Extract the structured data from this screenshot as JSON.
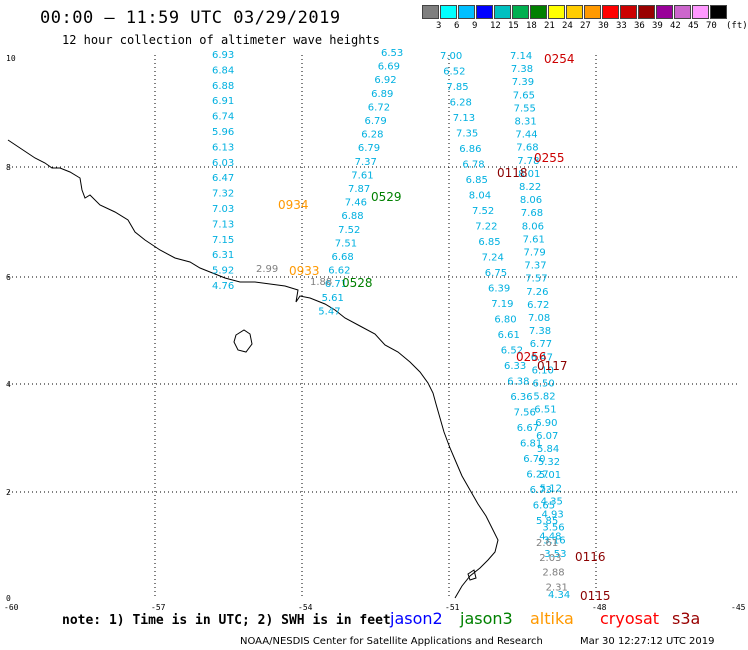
{
  "header": {
    "title": "00:00 – 11:59 UTC 03/29/2019",
    "subtitle": "12 hour collection of altimeter wave heights"
  },
  "legend": {
    "unit": "(ft)",
    "colors": [
      "#7f7f7f",
      "#00ffff",
      "#00bfff",
      "#0000ff",
      "#00c0c0",
      "#00b050",
      "#008000",
      "#ffff00",
      "#ffcc00",
      "#ff9900",
      "#ff0000",
      "#cc0000",
      "#990000",
      "#990099",
      "#cc66cc",
      "#ff99ff",
      "#000000"
    ],
    "labels": [
      "3",
      "6",
      "9",
      "12",
      "15",
      "18",
      "21",
      "24",
      "27",
      "30",
      "33",
      "36",
      "39",
      "42",
      "45",
      "70"
    ]
  },
  "axes": {
    "y_ticks": [
      "10",
      "8",
      "6",
      "4",
      "2",
      "0"
    ],
    "x_ticks": [
      "-60",
      "-57",
      "-54",
      "-51",
      "-48",
      "-45"
    ]
  },
  "tracks": [
    {
      "color": "#00b0e0",
      "start": [
        212,
        58
      ],
      "step": [
        0,
        15.4
      ],
      "values": [
        "6.93",
        "6.84",
        "6.88",
        "6.91",
        "6.74",
        "5.96",
        "6.13",
        "6.03",
        "6.47",
        "7.32",
        "7.03",
        "7.13",
        "7.15",
        "6.31",
        "5.92",
        "4.76"
      ]
    },
    {
      "color": "#7f7f7f",
      "start": [
        256,
        272
      ],
      "step": [
        0,
        0
      ],
      "values": [
        "2.99"
      ]
    },
    {
      "color": "#00b0e0",
      "start": [
        381,
        56
      ],
      "step": [
        -3.3,
        13.6
      ],
      "values": [
        "6.53",
        "6.69",
        "6.92",
        "6.89",
        "6.72",
        "6.79",
        "6.28",
        "6.79",
        "7.37",
        "7.61",
        "7.87",
        "7.46",
        "6.88",
        "7.52",
        "7.51",
        "6.68",
        "6.62",
        "6.71",
        "5.61",
        "5.47"
      ]
    },
    {
      "color": "#7f7f7f",
      "start": [
        310,
        285
      ],
      "step": [
        0,
        0
      ],
      "values": [
        "1.88"
      ]
    },
    {
      "color": "#00b0e0",
      "start": [
        440,
        59
      ],
      "step": [
        3.2,
        15.5
      ],
      "values": [
        "7.00",
        "6.52",
        "7.85",
        "6.28",
        "7.13",
        "7.35",
        "6.86",
        "6.78",
        "6.85",
        "8.04",
        "7.52",
        "7.22",
        "6.85",
        "7.24",
        "6.75",
        "6.39",
        "7.19",
        "6.80",
        "6.61",
        "6.52",
        "6.33",
        "6.38",
        "6.36",
        "7.56",
        "6.67",
        "6.81",
        "6.70",
        "6.27",
        "6.73",
        "6.65",
        "5.85",
        "4.48"
      ]
    },
    {
      "color": "#00b0e0",
      "start": [
        510,
        59
      ],
      "step": [
        0.9,
        13.1
      ],
      "values": [
        "7.14",
        "7.38",
        "7.39",
        "7.65",
        "7.55",
        "8.31",
        "7.44",
        "7.68",
        "7.78",
        "8.01",
        "8.22",
        "8.06",
        "7.68",
        "8.06",
        "7.61",
        "7.79",
        "7.37",
        "7.57",
        "7.26",
        "6.72",
        "7.08",
        "7.38",
        "6.77",
        "6.47",
        "6.10",
        "6.50",
        "5.82",
        "6.51",
        "6.90",
        "6.07",
        "5.84",
        "5.32",
        "5.01",
        "5.12",
        "4.35",
        "4.93",
        "3.56",
        "3.16",
        "3.53"
      ]
    },
    {
      "color": "#7f7f7f",
      "start": [
        536,
        546
      ],
      "step": [
        3.2,
        14.8
      ],
      "values": [
        "2.61",
        "2.03",
        "2.88",
        "2.31"
      ]
    },
    {
      "color": "#00b0e0",
      "start": [
        548,
        598
      ],
      "step": [
        0,
        0
      ],
      "values": [
        "4.34"
      ]
    }
  ],
  "pass_labels": [
    {
      "text": "0254",
      "color": "#cc0000",
      "pos": [
        544,
        63
      ]
    },
    {
      "text": "0255",
      "color": "#cc0000",
      "pos": [
        534,
        162
      ]
    },
    {
      "text": "0118",
      "color": "#8b0000",
      "pos": [
        497,
        177
      ]
    },
    {
      "text": "0934",
      "color": "#ff9900",
      "pos": [
        278,
        209
      ]
    },
    {
      "text": "0529",
      "color": "#008000",
      "pos": [
        371,
        201
      ]
    },
    {
      "text": "0933",
      "color": "#ff9900",
      "pos": [
        289,
        275
      ]
    },
    {
      "text": "0528",
      "color": "#008000",
      "pos": [
        342,
        287
      ]
    },
    {
      "text": "0256",
      "color": "#cc0000",
      "pos": [
        516,
        361
      ]
    },
    {
      "text": "0117",
      "color": "#8b0000",
      "pos": [
        537,
        370
      ]
    },
    {
      "text": "0116",
      "color": "#8b0000",
      "pos": [
        575,
        561
      ]
    },
    {
      "text": "0115",
      "color": "#8b0000",
      "pos": [
        580,
        600
      ]
    }
  ],
  "note": "note: 1) Time is in UTC; 2) SWH is in feet",
  "satellites": [
    {
      "name": "jason2",
      "color": "#0000ff"
    },
    {
      "name": "jason3",
      "color": "#008000"
    },
    {
      "name": "altika",
      "color": "#ff9900"
    },
    {
      "name": "cryosat",
      "color": "#ff0000"
    },
    {
      "name": "s3a",
      "color": "#990000"
    }
  ],
  "footer": {
    "credit": "NOAA/NESDIS Center for Satellite Applications and Research",
    "timestamp": "Mar 30 12:27:12 UTC 2019"
  }
}
